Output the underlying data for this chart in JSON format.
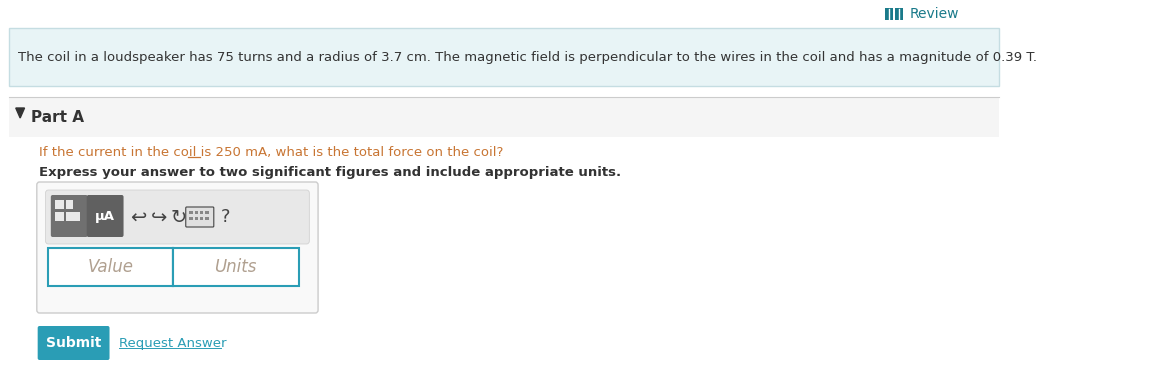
{
  "bg_color": "#ffffff",
  "review_text": "Review",
  "review_icon_color": "#1a7a8a",
  "review_text_color": "#1a7a8a",
  "info_box_bg": "#e8f4f6",
  "info_box_border": "#c5dde2",
  "info_text": "The coil in a loudspeaker has 75 turns and a radius of 3.7 cm. The magnetic field is perpendicular to the wires in the coil and has a magnitude of 0.39 T.",
  "info_text_color": "#333333",
  "part_a_bg": "#f5f5f5",
  "part_a_text": "Part A",
  "part_a_color": "#333333",
  "question_text": "If the current in the coil is 250 mA, what is the total force on the coil?",
  "question_color": "#c87533",
  "bold_instruction": "Express your answer to two significant figures and include appropriate units.",
  "bold_instruction_color": "#333333",
  "input_box_border": "#2a9db5",
  "value_placeholder": "Value",
  "units_placeholder": "Units",
  "placeholder_color": "#b0a090",
  "submit_bg": "#2a9db5",
  "submit_text": "Submit",
  "submit_text_color": "#ffffff",
  "request_answer_text": "Request Answer",
  "request_answer_color": "#2a9db5",
  "toolbar_bg": "#e8e8e8",
  "toolbar_border": "#cccccc",
  "outer_box_border": "#cccccc",
  "outer_box_bg": "#f9f9f9",
  "divider_color": "#cccccc",
  "icon_color": "#444444",
  "btn_dark": "#707070",
  "btn_darker": "#606060",
  "mu_a_text": "μȦ",
  "mu_a_display": "μA"
}
